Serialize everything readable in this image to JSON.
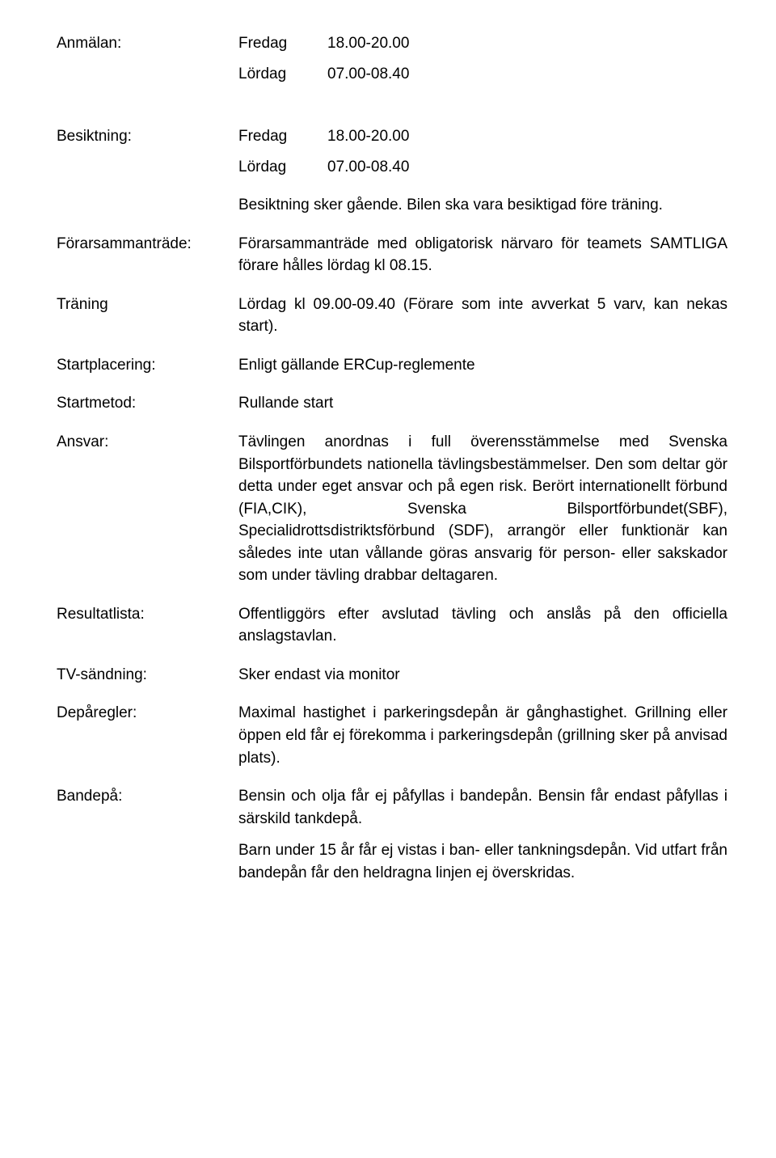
{
  "anmalan": {
    "label": "Anmälan:",
    "line1_day": "Fredag",
    "line1_time": "18.00-20.00",
    "line2_day": "Lördag",
    "line2_time": "07.00-08.40"
  },
  "besiktning": {
    "label": "Besiktning:",
    "line1_day": "Fredag",
    "line1_time": "18.00-20.00",
    "line2_day": "Lördag",
    "line2_time": "07.00-08.40",
    "note": "Besiktning sker gående. Bilen ska vara besiktigad före träning."
  },
  "forarsammantrade": {
    "label": "Förarsammanträde:",
    "text": "Förarsammanträde med obligatorisk närvaro för teamets SAMTLIGA förare hålles lördag kl 08.15."
  },
  "traning": {
    "label": "Träning",
    "text": "Lördag kl 09.00-09.40 (Förare som inte avverkat 5 varv, kan nekas start)."
  },
  "startplacering": {
    "label": "Startplacering:",
    "text": "Enligt gällande ERCup-reglemente"
  },
  "startmetod": {
    "label": "Startmetod:",
    "text": "Rullande start"
  },
  "ansvar": {
    "label": "Ansvar:",
    "text": "Tävlingen anordnas i full överensstämmelse med Svenska Bilsportförbundets nationella tävlingsbestämmelser. Den som deltar gör detta under eget ansvar och på egen risk. Berört internationellt förbund (FIA,CIK), Svenska Bilsportförbundet(SBF), Specialidrottsdistriktsförbund (SDF), arrangör eller funktionär kan således inte utan vållande göras ansvarig för person- eller sakskador som under tävling drabbar deltagaren."
  },
  "resultatlista": {
    "label": "Resultatlista:",
    "text": "Offentliggörs efter avslutad tävling och anslås på den officiella anslagstavlan."
  },
  "tvsandning": {
    "label": "TV-sändning:",
    "text": "Sker endast via monitor"
  },
  "deparegler": {
    "label": "Depåregler:",
    "text": "Maximal hastighet i parkeringsdepån är gånghastighet. Grillning eller öppen eld får ej förekomma i parkeringsdepån (grillning sker på anvisad plats)."
  },
  "bandepa": {
    "label": "Bandepå:",
    "para1": "Bensin och olja får ej påfyllas i bandepån. Bensin får endast påfyllas i särskild tankdepå.",
    "para2": "Barn under 15 år får ej vistas i ban- eller tankningsdepån. Vid utfart från bandepån får den heldragna linjen ej överskridas."
  }
}
